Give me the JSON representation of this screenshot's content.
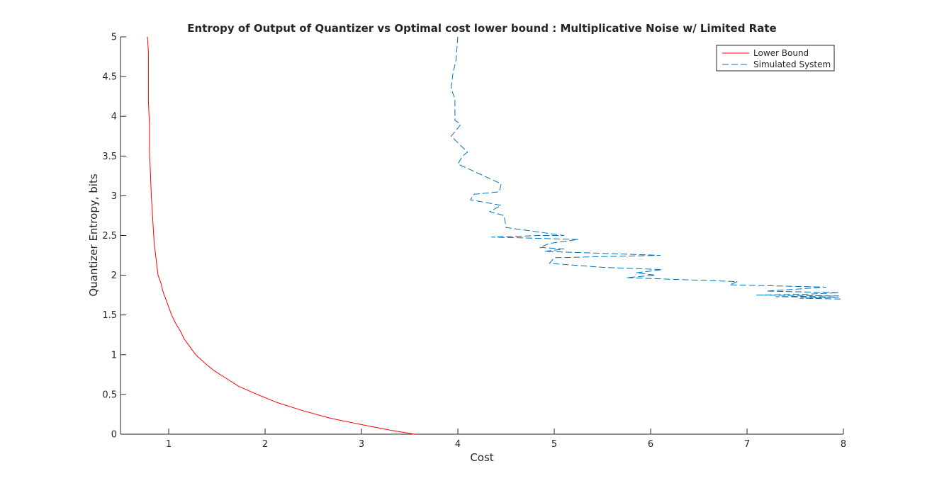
{
  "chart_data": {
    "type": "line",
    "title": "Entropy of Output of Quantizer vs Optimal cost lower bound : Multiplicative Noise w/ Limited Rate",
    "xlabel": "Cost",
    "ylabel": "Quantizer Entropy, bits",
    "xlim": [
      0.5,
      8
    ],
    "ylim": [
      0,
      5
    ],
    "xticks": [
      1,
      2,
      3,
      4,
      5,
      6,
      7,
      8
    ],
    "xtick_labels": [
      "1",
      "2",
      "3",
      "4",
      "5",
      "6",
      "7",
      "8"
    ],
    "yticks": [
      0,
      0.5,
      1,
      1.5,
      2,
      2.5,
      3,
      3.5,
      4,
      4.5,
      5
    ],
    "ytick_labels": [
      "0",
      "0.5",
      "1",
      "1.5",
      "2",
      "2.5",
      "3",
      "3.5",
      "4",
      "4.5",
      "5"
    ],
    "grid": false,
    "legend_position": "top-right",
    "series": [
      {
        "name": "Lower Bound",
        "color": "#ff0000",
        "style": "solid",
        "x": [
          3.55,
          3.3,
          3.0,
          2.68,
          2.38,
          2.12,
          1.92,
          1.73,
          1.6,
          1.47,
          1.37,
          1.28,
          1.22,
          1.16,
          1.12,
          1.07,
          1.03,
          1.0,
          0.97,
          0.94,
          0.92,
          0.89,
          0.87,
          0.85,
          0.84,
          0.83,
          0.82,
          0.81,
          0.8,
          0.8,
          0.79,
          0.79,
          0.79,
          0.78
        ],
        "y": [
          0,
          0.05,
          0.12,
          0.2,
          0.3,
          0.4,
          0.5,
          0.6,
          0.7,
          0.8,
          0.9,
          1.0,
          1.1,
          1.2,
          1.3,
          1.4,
          1.5,
          1.6,
          1.7,
          1.8,
          1.9,
          2.0,
          2.2,
          2.4,
          2.6,
          2.8,
          3.0,
          3.3,
          3.6,
          3.9,
          4.2,
          4.5,
          4.8,
          5.0
        ]
      },
      {
        "name": "Simulated System",
        "color": "#0072bd",
        "style": "dashed",
        "x": [
          4.0,
          3.98,
          3.95,
          3.93,
          3.97,
          3.97,
          3.97,
          4.03,
          4.0,
          3.93,
          4.1,
          4.05,
          4.0,
          4.45,
          4.43,
          4.17,
          4.13,
          4.45,
          4.33,
          4.48,
          4.5,
          4.8,
          4.92,
          5.1,
          4.85,
          4.35,
          5.25,
          4.95,
          4.85,
          5.1,
          4.9,
          6.1,
          5.0,
          4.95,
          5.5,
          6.12,
          5.85,
          6.05,
          5.75,
          6.9,
          6.82,
          7.82,
          7.45,
          7.2,
          7.95,
          7.6,
          7.1,
          7.95,
          7.3,
          7.95,
          7.55,
          8.0
        ],
        "y": [
          5.0,
          4.7,
          4.55,
          4.35,
          4.22,
          4.05,
          3.95,
          3.9,
          3.85,
          3.75,
          3.55,
          3.5,
          3.4,
          3.15,
          3.05,
          3.02,
          2.95,
          2.88,
          2.8,
          2.75,
          2.6,
          2.55,
          2.53,
          2.5,
          2.5,
          2.48,
          2.45,
          2.4,
          2.35,
          2.33,
          2.3,
          2.25,
          2.22,
          2.15,
          2.1,
          2.07,
          2.03,
          2.0,
          1.97,
          1.92,
          1.88,
          1.85,
          1.82,
          1.8,
          1.78,
          1.76,
          1.75,
          1.74,
          1.73,
          1.72,
          1.71,
          1.7
        ]
      }
    ]
  }
}
